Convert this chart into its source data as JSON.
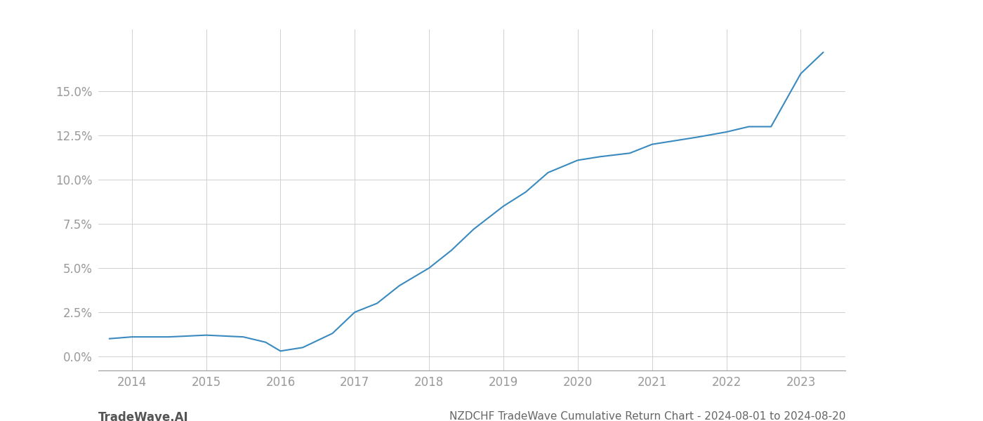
{
  "x_values": [
    2013.7,
    2014.0,
    2014.5,
    2015.0,
    2015.5,
    2015.8,
    2016.0,
    2016.3,
    2016.7,
    2017.0,
    2017.3,
    2017.6,
    2018.0,
    2018.3,
    2018.6,
    2019.0,
    2019.3,
    2019.6,
    2020.0,
    2020.3,
    2020.7,
    2021.0,
    2021.3,
    2021.6,
    2022.0,
    2022.3,
    2022.6,
    2023.0,
    2023.3
  ],
  "y_values": [
    0.01,
    0.011,
    0.011,
    0.012,
    0.011,
    0.008,
    0.003,
    0.005,
    0.013,
    0.025,
    0.03,
    0.04,
    0.05,
    0.06,
    0.072,
    0.085,
    0.093,
    0.104,
    0.111,
    0.113,
    0.115,
    0.12,
    0.122,
    0.124,
    0.127,
    0.13,
    0.13,
    0.16,
    0.172
  ],
  "line_color": "#3a8abf",
  "line_width": 1.5,
  "title": "NZDCHF TradeWave Cumulative Return Chart - 2024-08-01 to 2024-08-20",
  "watermark": "TradeWave.AI",
  "xlim": [
    2013.55,
    2023.6
  ],
  "ylim": [
    -0.008,
    0.185
  ],
  "yticks": [
    0.0,
    0.025,
    0.05,
    0.075,
    0.1,
    0.125,
    0.15
  ],
  "xticks": [
    2014,
    2015,
    2016,
    2017,
    2018,
    2019,
    2020,
    2021,
    2022,
    2023
  ],
  "grid_color": "#d0d0d0",
  "background_color": "#ffffff",
  "tick_color": "#999999",
  "title_color": "#666666",
  "watermark_color": "#555555",
  "title_fontsize": 11,
  "tick_fontsize": 12,
  "watermark_fontsize": 12
}
